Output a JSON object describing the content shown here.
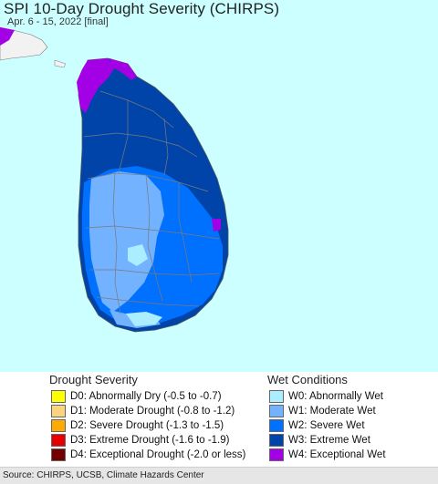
{
  "header": {
    "title": "SPI 10-Day Drought Severity (CHIRPS)",
    "subtitle": "Apr. 6 - 15, 2022 [final]"
  },
  "map": {
    "ocean_color": "#ccffff",
    "land_mainland_color": "#f2f2f2",
    "boundary_color": "#777777"
  },
  "legend": {
    "drought": {
      "title": "Drought Severity",
      "items": [
        {
          "label": "D0: Abnormally Dry (-0.5 to -0.7)",
          "color": "#ffff00"
        },
        {
          "label": "D1: Moderate Drought (-0.8 to -1.2)",
          "color": "#fcd37f"
        },
        {
          "label": "D2: Severe Drought (-1.3 to -1.5)",
          "color": "#ffaa00"
        },
        {
          "label": "D3: Extreme Drought (-1.6 to -1.9)",
          "color": "#e60000"
        },
        {
          "label": "D4: Exceptional Drought (-2.0 or less)",
          "color": "#730000"
        }
      ]
    },
    "wet": {
      "title": "Wet Conditions",
      "items": [
        {
          "label": "W0: Abnormally Wet",
          "color": "#aaeeff"
        },
        {
          "label": "W1: Moderate Wet",
          "color": "#73b2ff"
        },
        {
          "label": "W2: Severe Wet",
          "color": "#0070ff"
        },
        {
          "label": "W3: Extreme Wet",
          "color": "#0044aa"
        },
        {
          "label": "W4: Exceptional Wet",
          "color": "#a400e6"
        }
      ]
    }
  },
  "footer": {
    "source": "Source: CHIRPS, UCSB, Climate Hazards Center"
  }
}
